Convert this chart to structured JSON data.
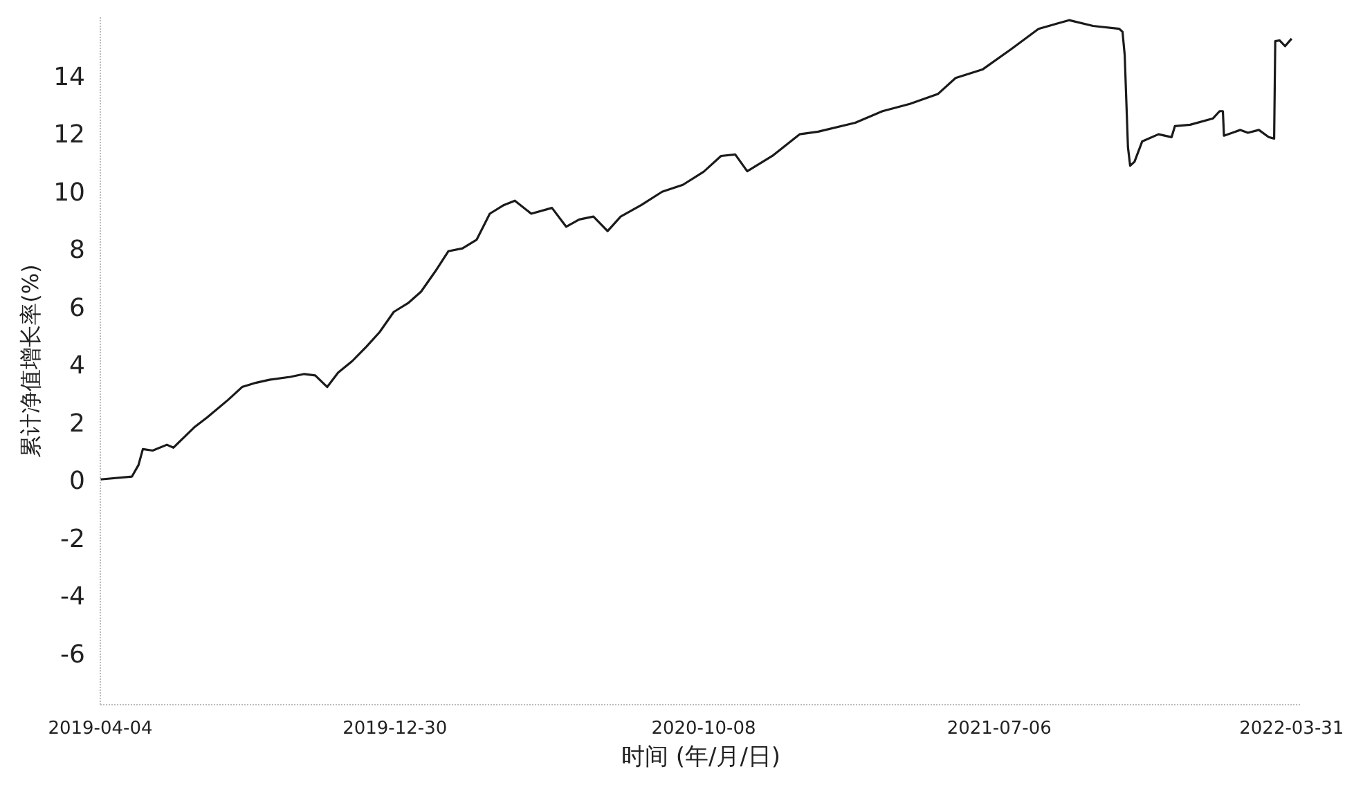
{
  "chart_data": {
    "type": "line",
    "xlabel": "时间 (年/月/日)",
    "ylabel": "累计净值增长率(%)",
    "xlim": [
      "2019-04-04",
      "2022-04-09"
    ],
    "xticks": [
      "2019-04-04",
      "2019-12-30",
      "2020-10-08",
      "2021-07-06",
      "2022-03-31"
    ],
    "ylim": [
      -7.8,
      16
    ],
    "yticks": [
      -6,
      -4,
      -2,
      0,
      2,
      4,
      6,
      8,
      10,
      12,
      14
    ],
    "line_style": "solid",
    "series": [
      {
        "color": "#1a1a1a",
        "x": [
          "2019-04-04",
          "2019-05-03",
          "2019-05-09",
          "2019-05-13",
          "2019-05-22",
          "2019-06-04",
          "2019-06-10",
          "2019-06-29",
          "2019-07-11",
          "2019-07-30",
          "2019-08-12",
          "2019-08-25",
          "2019-09-06",
          "2019-09-25",
          "2019-10-08",
          "2019-10-18",
          "2019-10-29",
          "2019-11-08",
          "2019-11-21",
          "2019-12-04",
          "2019-12-16",
          "2019-12-29",
          "2020-01-11",
          "2020-01-23",
          "2020-02-05",
          "2020-02-17",
          "2020-03-01",
          "2020-03-14",
          "2020-03-26",
          "2020-04-08",
          "2020-04-18",
          "2020-05-03",
          "2020-05-22",
          "2020-06-04",
          "2020-06-16",
          "2020-06-29",
          "2020-07-12",
          "2020-07-24",
          "2020-08-12",
          "2020-08-31",
          "2020-09-19",
          "2020-10-08",
          "2020-10-24",
          "2020-11-06",
          "2020-11-17",
          "2020-12-10",
          "2021-01-04",
          "2021-01-21",
          "2021-02-24",
          "2021-03-21",
          "2021-04-15",
          "2021-05-11",
          "2021-05-27",
          "2021-06-21",
          "2021-07-17",
          "2021-08-11",
          "2021-09-08",
          "2021-09-30",
          "2021-10-24",
          "2021-10-27",
          "2021-10-29",
          "2021-11-01",
          "2021-11-03",
          "2021-11-07",
          "2021-11-14",
          "2021-11-29",
          "2021-12-11",
          "2021-12-14",
          "2021-12-28",
          "2022-01-18",
          "2022-01-24",
          "2022-01-27",
          "2022-01-28",
          "2022-02-12",
          "2022-02-19",
          "2022-03-01",
          "2022-03-10",
          "2022-03-15",
          "2022-03-16",
          "2022-03-20",
          "2022-03-25",
          "2022-03-31"
        ],
        "values": [
          0,
          0.1,
          0.5,
          1.05,
          1.0,
          1.2,
          1.1,
          1.8,
          2.15,
          2.75,
          3.2,
          3.35,
          3.45,
          3.55,
          3.65,
          3.6,
          3.2,
          3.7,
          4.1,
          4.6,
          5.1,
          5.8,
          6.1,
          6.5,
          7.2,
          7.9,
          8.0,
          8.3,
          9.2,
          9.5,
          9.65,
          9.2,
          9.4,
          8.75,
          9.0,
          9.1,
          8.6,
          9.1,
          9.5,
          9.96,
          10.2,
          10.65,
          11.2,
          11.25,
          10.67,
          11.2,
          11.95,
          12.04,
          12.35,
          12.75,
          13.0,
          13.35,
          13.9,
          14.2,
          14.9,
          15.6,
          15.9,
          15.7,
          15.6,
          15.5,
          14.7,
          11.5,
          10.86,
          11.0,
          11.7,
          11.95,
          11.85,
          12.23,
          12.28,
          12.5,
          12.75,
          12.75,
          11.9,
          12.1,
          12.0,
          12.1,
          11.85,
          11.8,
          15.17,
          15.2,
          15.0,
          15.26
        ]
      }
    ]
  }
}
